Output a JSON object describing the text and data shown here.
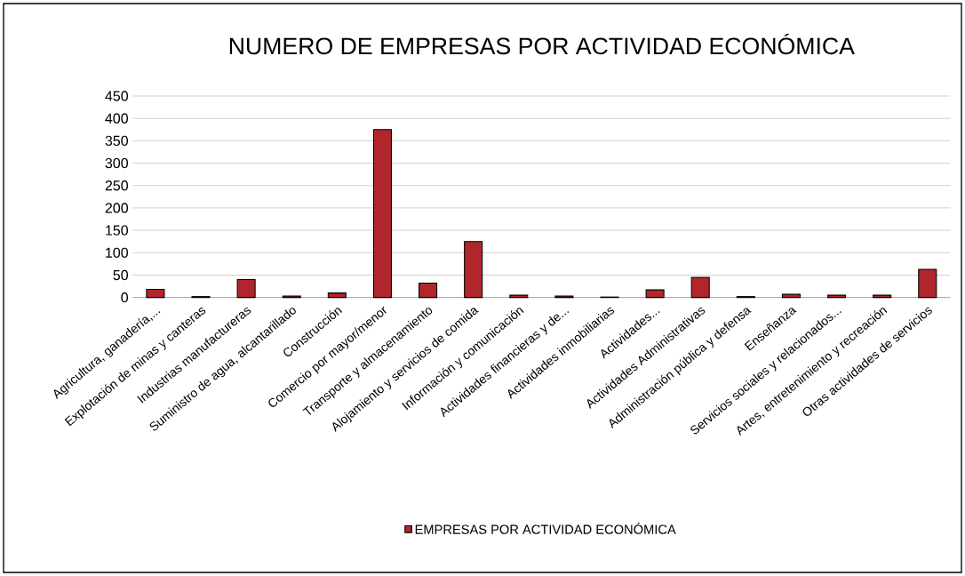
{
  "chart_data": {
    "type": "bar",
    "title": "NUMERO DE EMPRESAS POR ACTIVIDAD ECONÓMICA",
    "categories": [
      "Agricultura, ganadería,...",
      "Explotación de minas y canteras",
      "Industrias manufactureras",
      "Suministro de agua, alcantarillado",
      "Construcción",
      "Comercio por mayor/menor",
      "Transporte y almacenamiento",
      "Alojamiento y servicios de comida",
      "Información y comunicación",
      "Actividades financieras y de...",
      "Actividades inmobiliarias",
      "Actividades...",
      "Actividades Administrativas",
      "Administración pública y defensa",
      "Enseñanza",
      "Servicios sociales y relacionados...",
      "Artes, entretenimiento y recreación",
      "Otras actividades de servicios"
    ],
    "series": [
      {
        "name": "EMPRESAS POR ACTIVIDAD ECONÓMICA",
        "color": "#b0262c",
        "values": [
          18,
          2,
          40,
          3,
          10,
          375,
          32,
          125,
          5,
          3,
          1,
          17,
          45,
          2,
          7,
          5,
          5,
          63
        ]
      }
    ],
    "ylim": [
      0,
      450
    ],
    "yticks": [
      0,
      50,
      100,
      150,
      200,
      250,
      300,
      350,
      400,
      450
    ],
    "grid": "y",
    "legend": "bottom"
  }
}
